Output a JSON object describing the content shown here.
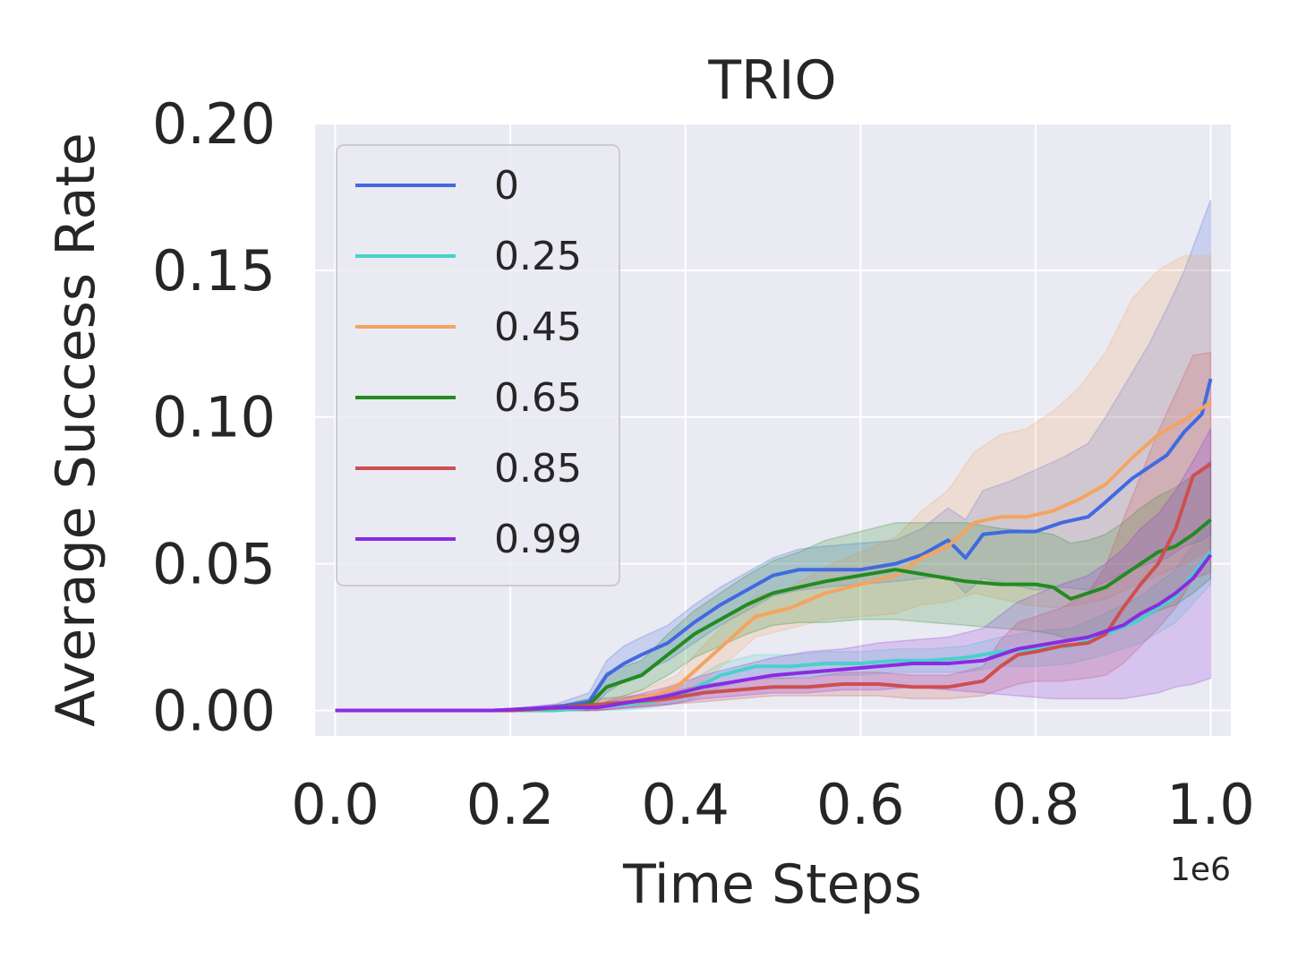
{
  "chart_data": {
    "type": "line",
    "title": "TRIO",
    "xlabel": "Time Steps",
    "ylabel": "Average Success Rate",
    "x_offset_label": "1e6",
    "xlim": [
      -0.023,
      1.023
    ],
    "ylim": [
      -0.0087,
      0.2
    ],
    "x_ticks": [
      0.0,
      0.2,
      0.4,
      0.6,
      0.8,
      1.0
    ],
    "x_tick_labels": [
      "0.0",
      "0.2",
      "0.4",
      "0.6",
      "0.8",
      "1.0"
    ],
    "y_ticks": [
      0.0,
      0.05,
      0.1,
      0.15,
      0.2
    ],
    "y_tick_labels": [
      "0.00",
      "0.05",
      "0.10",
      "0.15",
      "0.20"
    ],
    "grid": true,
    "legend_position": "upper left",
    "background": "#eaeaf2",
    "series": [
      {
        "name": "0",
        "color": "#4169e1",
        "x": [
          0.0,
          0.18,
          0.25,
          0.29,
          0.31,
          0.33,
          0.35,
          0.38,
          0.41,
          0.44,
          0.47,
          0.5,
          0.53,
          0.56,
          0.6,
          0.64,
          0.67,
          0.7,
          0.72,
          0.74,
          0.77,
          0.8,
          0.83,
          0.86,
          0.88,
          0.91,
          0.93,
          0.95,
          0.97,
          0.99,
          1.0
        ],
        "y": [
          0.0,
          0.0,
          0.001,
          0.003,
          0.012,
          0.016,
          0.019,
          0.023,
          0.03,
          0.036,
          0.041,
          0.046,
          0.048,
          0.048,
          0.048,
          0.05,
          0.053,
          0.058,
          0.052,
          0.06,
          0.061,
          0.061,
          0.064,
          0.066,
          0.071,
          0.079,
          0.083,
          0.087,
          0.095,
          0.101,
          0.113
        ],
        "lower": [
          0.0,
          0.0,
          0.0,
          0.0,
          0.006,
          0.01,
          0.013,
          0.017,
          0.023,
          0.029,
          0.034,
          0.039,
          0.041,
          0.042,
          0.043,
          0.044,
          0.045,
          0.046,
          0.04,
          0.045,
          0.043,
          0.041,
          0.042,
          0.041,
          0.044,
          0.048,
          0.05,
          0.052,
          0.056,
          0.058,
          0.06
        ],
        "upper": [
          0.0,
          0.0,
          0.002,
          0.006,
          0.017,
          0.022,
          0.025,
          0.029,
          0.036,
          0.042,
          0.047,
          0.052,
          0.055,
          0.056,
          0.057,
          0.058,
          0.062,
          0.069,
          0.065,
          0.075,
          0.078,
          0.082,
          0.086,
          0.091,
          0.1,
          0.115,
          0.125,
          0.137,
          0.15,
          0.166,
          0.174
        ]
      },
      {
        "name": "0.25",
        "color": "#48d1cc",
        "x": [
          0.0,
          0.18,
          0.25,
          0.3,
          0.33,
          0.36,
          0.4,
          0.44,
          0.48,
          0.52,
          0.56,
          0.6,
          0.64,
          0.68,
          0.72,
          0.76,
          0.8,
          0.84,
          0.88,
          0.92,
          0.96,
          1.0
        ],
        "y": [
          0.0,
          0.0,
          0.0,
          0.001,
          0.002,
          0.003,
          0.006,
          0.012,
          0.015,
          0.015,
          0.016,
          0.016,
          0.017,
          0.017,
          0.018,
          0.02,
          0.021,
          0.022,
          0.026,
          0.031,
          0.039,
          0.054
        ],
        "lower": [
          0.0,
          0.0,
          0.0,
          0.0,
          0.0,
          0.001,
          0.003,
          0.008,
          0.011,
          0.011,
          0.012,
          0.012,
          0.013,
          0.013,
          0.013,
          0.015,
          0.015,
          0.016,
          0.019,
          0.023,
          0.03,
          0.043
        ],
        "upper": [
          0.0,
          0.0,
          0.0,
          0.002,
          0.004,
          0.005,
          0.009,
          0.016,
          0.019,
          0.019,
          0.02,
          0.02,
          0.021,
          0.021,
          0.022,
          0.025,
          0.027,
          0.028,
          0.033,
          0.039,
          0.048,
          0.065
        ]
      },
      {
        "name": "0.45",
        "color": "#f4a460",
        "x": [
          0.0,
          0.2,
          0.26,
          0.3,
          0.33,
          0.36,
          0.39,
          0.42,
          0.45,
          0.48,
          0.52,
          0.56,
          0.6,
          0.64,
          0.67,
          0.7,
          0.73,
          0.76,
          0.79,
          0.82,
          0.85,
          0.88,
          0.91,
          0.94,
          0.97,
          1.0
        ],
        "y": [
          0.0,
          0.0,
          0.001,
          0.001,
          0.003,
          0.005,
          0.008,
          0.016,
          0.024,
          0.032,
          0.035,
          0.04,
          0.043,
          0.046,
          0.052,
          0.056,
          0.064,
          0.066,
          0.066,
          0.068,
          0.072,
          0.077,
          0.086,
          0.094,
          0.099,
          0.105
        ],
        "lower": [
          0.0,
          0.0,
          0.0,
          0.0,
          0.001,
          0.002,
          0.004,
          0.01,
          0.017,
          0.025,
          0.028,
          0.031,
          0.032,
          0.033,
          0.036,
          0.037,
          0.04,
          0.038,
          0.036,
          0.035,
          0.036,
          0.038,
          0.042,
          0.046,
          0.05,
          0.055
        ],
        "upper": [
          0.0,
          0.0,
          0.002,
          0.002,
          0.005,
          0.008,
          0.012,
          0.022,
          0.031,
          0.039,
          0.042,
          0.049,
          0.054,
          0.059,
          0.068,
          0.075,
          0.088,
          0.094,
          0.096,
          0.102,
          0.11,
          0.122,
          0.14,
          0.15,
          0.155,
          0.155
        ]
      },
      {
        "name": "0.65",
        "color": "#228b22",
        "x": [
          0.0,
          0.2,
          0.26,
          0.29,
          0.31,
          0.33,
          0.35,
          0.38,
          0.41,
          0.44,
          0.47,
          0.5,
          0.53,
          0.56,
          0.6,
          0.64,
          0.68,
          0.72,
          0.76,
          0.8,
          0.82,
          0.84,
          0.86,
          0.88,
          0.9,
          0.92,
          0.94,
          0.96,
          0.98,
          1.0
        ],
        "y": [
          0.0,
          0.0,
          0.001,
          0.002,
          0.008,
          0.01,
          0.012,
          0.019,
          0.026,
          0.031,
          0.036,
          0.04,
          0.042,
          0.044,
          0.046,
          0.048,
          0.046,
          0.044,
          0.043,
          0.043,
          0.042,
          0.038,
          0.04,
          0.042,
          0.046,
          0.05,
          0.054,
          0.056,
          0.06,
          0.065
        ],
        "lower": [
          0.0,
          0.0,
          0.0,
          0.0,
          0.003,
          0.005,
          0.007,
          0.012,
          0.018,
          0.022,
          0.026,
          0.029,
          0.03,
          0.03,
          0.031,
          0.031,
          0.03,
          0.029,
          0.028,
          0.027,
          0.026,
          0.024,
          0.025,
          0.026,
          0.028,
          0.031,
          0.034,
          0.036,
          0.04,
          0.045
        ],
        "upper": [
          0.0,
          0.0,
          0.002,
          0.004,
          0.013,
          0.015,
          0.017,
          0.026,
          0.034,
          0.04,
          0.046,
          0.051,
          0.054,
          0.058,
          0.061,
          0.064,
          0.064,
          0.064,
          0.062,
          0.061,
          0.06,
          0.057,
          0.058,
          0.06,
          0.064,
          0.069,
          0.073,
          0.076,
          0.08,
          0.085
        ]
      },
      {
        "name": "0.85",
        "color": "#cd4f4f",
        "x": [
          0.0,
          0.2,
          0.26,
          0.3,
          0.34,
          0.38,
          0.42,
          0.46,
          0.5,
          0.54,
          0.58,
          0.62,
          0.66,
          0.7,
          0.74,
          0.76,
          0.78,
          0.8,
          0.83,
          0.86,
          0.88,
          0.9,
          0.92,
          0.94,
          0.96,
          0.98,
          1.0
        ],
        "y": [
          0.0,
          0.0,
          0.001,
          0.002,
          0.003,
          0.004,
          0.006,
          0.007,
          0.008,
          0.008,
          0.009,
          0.009,
          0.008,
          0.008,
          0.01,
          0.015,
          0.019,
          0.02,
          0.022,
          0.023,
          0.026,
          0.035,
          0.043,
          0.05,
          0.062,
          0.08,
          0.084
        ],
        "lower": [
          0.0,
          0.0,
          0.0,
          0.0,
          0.001,
          0.002,
          0.003,
          0.004,
          0.005,
          0.005,
          0.005,
          0.005,
          0.004,
          0.004,
          0.005,
          0.007,
          0.009,
          0.01,
          0.01,
          0.011,
          0.012,
          0.016,
          0.022,
          0.028,
          0.035,
          0.045,
          0.047
        ],
        "upper": [
          0.0,
          0.0,
          0.002,
          0.004,
          0.005,
          0.006,
          0.009,
          0.01,
          0.011,
          0.011,
          0.013,
          0.013,
          0.012,
          0.012,
          0.015,
          0.024,
          0.03,
          0.032,
          0.035,
          0.04,
          0.049,
          0.065,
          0.08,
          0.095,
          0.108,
          0.121,
          0.122
        ]
      },
      {
        "name": "0.99",
        "color": "#8a2be2",
        "x": [
          0.0,
          0.18,
          0.25,
          0.3,
          0.34,
          0.38,
          0.42,
          0.46,
          0.5,
          0.54,
          0.58,
          0.62,
          0.66,
          0.7,
          0.74,
          0.78,
          0.82,
          0.86,
          0.88,
          0.9,
          0.92,
          0.94,
          0.96,
          0.98,
          1.0
        ],
        "y": [
          0.0,
          0.0,
          0.001,
          0.001,
          0.003,
          0.005,
          0.008,
          0.01,
          0.012,
          0.013,
          0.014,
          0.015,
          0.016,
          0.016,
          0.017,
          0.021,
          0.023,
          0.025,
          0.027,
          0.029,
          0.033,
          0.036,
          0.04,
          0.045,
          0.053
        ],
        "lower": [
          0.0,
          0.0,
          0.0,
          0.0,
          0.001,
          0.002,
          0.004,
          0.005,
          0.006,
          0.006,
          0.007,
          0.007,
          0.008,
          0.007,
          0.006,
          0.005,
          0.004,
          0.004,
          0.004,
          0.004,
          0.005,
          0.006,
          0.008,
          0.009,
          0.011
        ],
        "upper": [
          0.0,
          0.0,
          0.002,
          0.002,
          0.005,
          0.008,
          0.012,
          0.015,
          0.018,
          0.02,
          0.021,
          0.023,
          0.024,
          0.025,
          0.028,
          0.037,
          0.042,
          0.046,
          0.05,
          0.055,
          0.062,
          0.067,
          0.075,
          0.085,
          0.096
        ]
      }
    ]
  }
}
